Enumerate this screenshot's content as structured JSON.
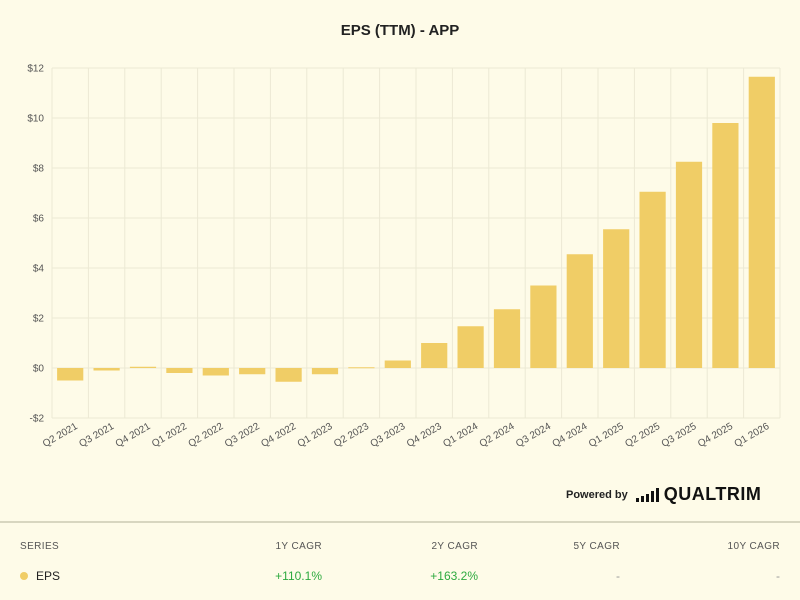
{
  "chart_data": {
    "type": "bar",
    "title": "EPS (TTM) - APP",
    "categories": [
      "Q2 2021",
      "Q3 2021",
      "Q4 2021",
      "Q1 2022",
      "Q2 2022",
      "Q3 2022",
      "Q4 2022",
      "Q1 2023",
      "Q2 2023",
      "Q3 2023",
      "Q4 2023",
      "Q1 2024",
      "Q2 2024",
      "Q3 2024",
      "Q4 2024",
      "Q1 2025",
      "Q2 2025",
      "Q3 2025",
      "Q4 2025",
      "Q1 2026"
    ],
    "series": [
      {
        "name": "EPS",
        "values": [
          -0.5,
          -0.1,
          0.05,
          -0.2,
          -0.3,
          -0.25,
          -0.55,
          -0.25,
          0.03,
          0.3,
          1.0,
          1.67,
          2.35,
          3.3,
          4.55,
          5.55,
          7.05,
          8.25,
          9.8,
          11.65
        ]
      }
    ],
    "ylim": [
      -2,
      12
    ],
    "yticks": [
      -2,
      0,
      2,
      4,
      6,
      8,
      10,
      12
    ],
    "ytick_labels": [
      "-$2",
      "$0",
      "$2",
      "$4",
      "$6",
      "$8",
      "$10",
      "$12"
    ],
    "grid": true,
    "bar_color": "#f0cd66"
  },
  "branding": {
    "powered_by": "Powered by",
    "logo_text": "QUALTRIM"
  },
  "table": {
    "headers": {
      "series": "SERIES",
      "cagr_1y": "1Y CAGR",
      "cagr_2y": "2Y CAGR",
      "cagr_5y": "5Y CAGR",
      "cagr_10y": "10Y CAGR"
    },
    "row": {
      "series": "EPS",
      "color": "#f0cd66",
      "cagr_1y": "+110.1%",
      "cagr_2y": "+163.2%",
      "cagr_5y": "-",
      "cagr_10y": "-"
    }
  }
}
